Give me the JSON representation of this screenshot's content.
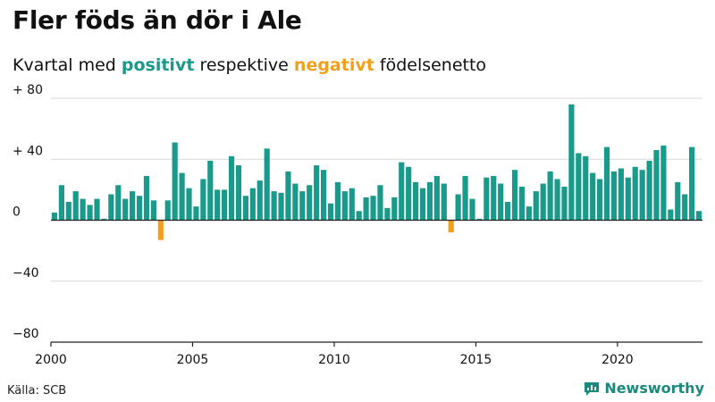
{
  "header": {
    "title": "Fler föds än dör i Ale",
    "subtitle_pre": "Kvartal med",
    "subtitle_pos": "positivt",
    "subtitle_mid": "respektive",
    "subtitle_neg": "negativt",
    "subtitle_post": "födelsenetto"
  },
  "footer": {
    "source": "Källa: SCB",
    "brand": "Newsworthy"
  },
  "colors": {
    "positive": "#1a9a8a",
    "negative": "#f0a020",
    "grid": "#d9d9d9",
    "axis": "#222222"
  },
  "chart_data": {
    "type": "bar",
    "title": "Fler föds än dör i Ale",
    "xlabel": "",
    "ylabel": "",
    "ylim": [
      -80,
      80
    ],
    "yticks": [
      80,
      40,
      0,
      -40,
      -80
    ],
    "ytick_labels": [
      "+ 80",
      "+ 40",
      "0",
      "−40",
      "−80"
    ],
    "xtick_labels": [
      "2000",
      "2005",
      "2010",
      "2015",
      "2020"
    ],
    "grid": true,
    "start": "2000 Q1",
    "frequency": "quarter",
    "values": [
      5,
      23,
      12,
      19,
      14,
      10,
      14,
      1,
      17,
      23,
      14,
      19,
      16,
      29,
      13,
      -13,
      13,
      51,
      31,
      21,
      9,
      27,
      39,
      20,
      20,
      42,
      36,
      16,
      21,
      26,
      47,
      19,
      18,
      32,
      24,
      19,
      23,
      36,
      33,
      11,
      25,
      19,
      21,
      6,
      15,
      16,
      23,
      8,
      15,
      38,
      35,
      25,
      21,
      25,
      29,
      24,
      -8,
      17,
      29,
      14,
      1,
      28,
      29,
      24,
      12,
      33,
      22,
      9,
      19,
      24,
      32,
      27,
      22,
      76,
      44,
      42,
      31,
      27,
      48,
      32,
      34,
      28,
      35,
      33,
      39,
      46,
      49,
      7,
      25,
      17,
      48,
      6
    ]
  }
}
